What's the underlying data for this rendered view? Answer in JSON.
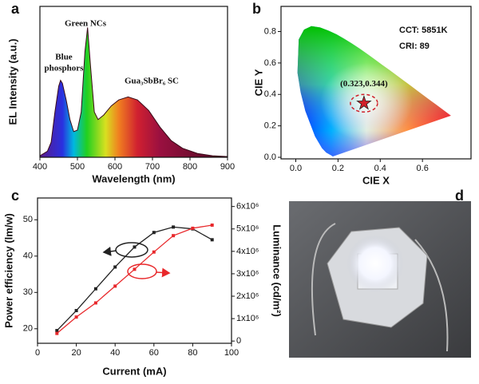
{
  "chart_data": [
    {
      "type": "area",
      "label": "a",
      "xlabel": "Wavelength (nm)",
      "ylabel": "EL Intensity (a.u.)",
      "x": [
        400,
        420,
        430,
        440,
        450,
        455,
        460,
        470,
        480,
        490,
        500,
        510,
        520,
        527,
        535,
        545,
        555,
        570,
        590,
        610,
        635,
        660,
        690,
        720,
        750,
        780,
        820,
        860,
        900
      ],
      "values": [
        0.01,
        0.04,
        0.1,
        0.3,
        0.47,
        0.51,
        0.49,
        0.38,
        0.25,
        0.17,
        0.18,
        0.3,
        0.7,
        0.86,
        0.6,
        0.3,
        0.25,
        0.28,
        0.34,
        0.38,
        0.4,
        0.38,
        0.31,
        0.2,
        0.11,
        0.06,
        0.025,
        0.01,
        0.005
      ],
      "xlim": [
        400,
        900
      ],
      "xticks": [
        400,
        500,
        600,
        700,
        800,
        900
      ],
      "ylim": [
        0,
        1
      ],
      "annotations": [
        "Blue",
        "phosphors",
        "Green NCs",
        "Gua₃SbBr₆ SC"
      ]
    },
    {
      "type": "scatter",
      "label": "b",
      "xlabel": "CIE X",
      "ylabel": "CIE Y",
      "xlim": [
        -0.07,
        0.83
      ],
      "ylim": [
        -0.01,
        0.96
      ],
      "xticks": [
        {
          "value": 0,
          "label": "0.0"
        },
        0.2,
        0.4,
        0.6
      ],
      "yticks": [
        {
          "value": 0,
          "label": "0.0"
        },
        0.2,
        0.4,
        0.6,
        0.8
      ],
      "locus_x": [
        0.175,
        0.17,
        0.144,
        0.124,
        0.091,
        0.045,
        0.023,
        0.008,
        0.014,
        0.039,
        0.074,
        0.115,
        0.155,
        0.193,
        0.23,
        0.266,
        0.302,
        0.337,
        0.373,
        0.408,
        0.444,
        0.479,
        0.512,
        0.545,
        0.575,
        0.627,
        0.666,
        0.735
      ],
      "locus_y": [
        0.005,
        0.01,
        0.03,
        0.058,
        0.133,
        0.295,
        0.413,
        0.538,
        0.75,
        0.812,
        0.834,
        0.826,
        0.806,
        0.782,
        0.754,
        0.724,
        0.692,
        0.659,
        0.624,
        0.589,
        0.555,
        0.52,
        0.487,
        0.455,
        0.424,
        0.372,
        0.334,
        0.265
      ],
      "points_x": [
        0.323
      ],
      "points_y": [
        0.344
      ],
      "point_color": "#d0202a",
      "annotations": [
        "(0.323,0.344)",
        "CCT:  5851K",
        "CRI: 89"
      ]
    },
    {
      "type": "line",
      "label": "c",
      "xlabel": "Current (mA)",
      "ylabel": "Power efficiency (lm/w)",
      "y2label": "Luminance (cd/m²)",
      "x": [
        10,
        20,
        30,
        40,
        50,
        60,
        70,
        80,
        90
      ],
      "xlim": [
        0,
        100
      ],
      "xticks": [
        0,
        20,
        40,
        60,
        80,
        100
      ],
      "ylim": [
        16,
        56
      ],
      "yticks": [
        20,
        30,
        40,
        50
      ],
      "y2lim": [
        -100000,
        6380000
      ],
      "y2ticks": [
        0,
        {
          "value": 1000000,
          "label": "1x10⁶"
        },
        {
          "value": 2000000,
          "label": "2x10⁶"
        },
        {
          "value": 3000000,
          "label": "3x10⁶"
        },
        {
          "value": 4000000,
          "label": "4x10⁶"
        },
        {
          "value": 5000000,
          "label": "5x10⁶"
        },
        {
          "value": 6000000,
          "label": "6x10⁶"
        }
      ],
      "series": [
        {
          "color": "#222222",
          "axis": "y",
          "values": [
            19.5,
            25,
            31,
            37,
            42.5,
            46.5,
            48,
            47.5,
            44.5
          ]
        },
        {
          "color": "#e8282b",
          "axis": "y2",
          "values": [
            340000,
            1070000,
            1700000,
            2450000,
            3200000,
            3970000,
            4700000,
            5030000,
            5170000
          ]
        }
      ]
    }
  ],
  "photo": {
    "label": "d"
  }
}
